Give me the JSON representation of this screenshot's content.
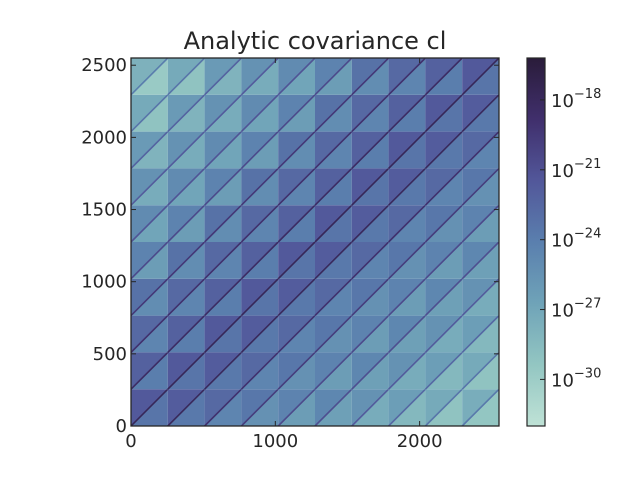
{
  "chart_data": {
    "type": "heatmap",
    "title": "Analytic covariance cl",
    "xlabel": "",
    "ylabel": "",
    "xlim": [
      0,
      2550
    ],
    "ylim": [
      0,
      2550
    ],
    "x_ticks": [
      {
        "value": 0,
        "label": "0"
      },
      {
        "value": 1000,
        "label": "1000"
      },
      {
        "value": 2000,
        "label": "2000"
      }
    ],
    "y_ticks": [
      {
        "value": 0,
        "label": "0"
      },
      {
        "value": 500,
        "label": "500"
      },
      {
        "value": 1000,
        "label": "1000"
      },
      {
        "value": 1500,
        "label": "1500"
      },
      {
        "value": 2000,
        "label": "2000"
      },
      {
        "value": 2500,
        "label": "2500"
      }
    ],
    "blocks": 10,
    "block_size": 255,
    "colorbar": {
      "scale": "log",
      "range_exponent": [
        -32,
        -16.2
      ],
      "ticks": [
        {
          "base": "10",
          "exponent": "−18",
          "value": -18
        },
        {
          "base": "10",
          "exponent": "−21",
          "value": -21
        },
        {
          "base": "10",
          "exponent": "−24",
          "value": -24
        },
        {
          "base": "10",
          "exponent": "−27",
          "value": -27
        },
        {
          "base": "10",
          "exponent": "−30",
          "value": -30
        }
      ],
      "colormap": [
        "#bfe2d6",
        "#93c6c2",
        "#6fa3b8",
        "#5a7fae",
        "#52579a",
        "#402f6c",
        "#2a1c3a"
      ]
    },
    "grid": false,
    "legend": "none"
  }
}
